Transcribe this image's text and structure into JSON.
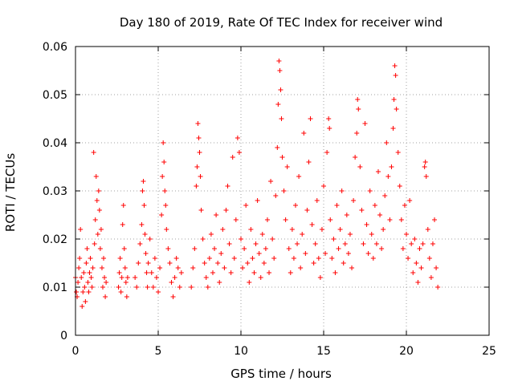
{
  "chart_data": {
    "type": "scatter",
    "title": "Day 180 of 2019, Rate Of TEC Index for receiver wind",
    "xlabel": "GPS time / hours",
    "ylabel": "ROTI / TECUs",
    "xlim": [
      0,
      25
    ],
    "ylim": [
      0,
      0.06
    ],
    "x_ticks": [
      0,
      5,
      10,
      15,
      20,
      25
    ],
    "x_tick_labels": [
      "0",
      "5",
      "10",
      "15",
      "20",
      "25"
    ],
    "y_ticks": [
      0,
      0.01,
      0.02,
      0.03,
      0.04,
      0.05,
      0.06
    ],
    "y_tick_labels": [
      "0",
      "0.01",
      "0.02",
      "0.03",
      "0.04",
      "0.05",
      "0.06"
    ],
    "grid": true,
    "legend": "none",
    "marker": "plus",
    "color": "#ff0000",
    "series": [
      {
        "points": [
          [
            0.0,
            0.012
          ],
          [
            0.05,
            0.009
          ],
          [
            0.1,
            0.008
          ],
          [
            0.15,
            0.011
          ],
          [
            0.2,
            0.014
          ],
          [
            0.25,
            0.016
          ],
          [
            0.3,
            0.022
          ],
          [
            0.35,
            0.012
          ],
          [
            0.4,
            0.006
          ],
          [
            0.45,
            0.009
          ],
          [
            0.5,
            0.013
          ],
          [
            0.55,
            0.01
          ],
          [
            0.6,
            0.007
          ],
          [
            0.65,
            0.015
          ],
          [
            0.7,
            0.018
          ],
          [
            0.75,
            0.011
          ],
          [
            0.8,
            0.009
          ],
          [
            0.85,
            0.013
          ],
          [
            0.9,
            0.016
          ],
          [
            0.95,
            0.012
          ],
          [
            1.0,
            0.01
          ],
          [
            1.05,
            0.014
          ],
          [
            1.1,
            0.038
          ],
          [
            1.15,
            0.019
          ],
          [
            1.2,
            0.024
          ],
          [
            1.25,
            0.033
          ],
          [
            1.3,
            0.028
          ],
          [
            1.35,
            0.021
          ],
          [
            1.4,
            0.03
          ],
          [
            1.45,
            0.026
          ],
          [
            1.5,
            0.018
          ],
          [
            1.55,
            0.022
          ],
          [
            1.6,
            0.014
          ],
          [
            1.65,
            0.01
          ],
          [
            1.7,
            0.016
          ],
          [
            1.75,
            0.012
          ],
          [
            1.8,
            0.008
          ],
          [
            1.85,
            0.011
          ],
          [
            2.6,
            0.01
          ],
          [
            2.65,
            0.013
          ],
          [
            2.7,
            0.016
          ],
          [
            2.75,
            0.009
          ],
          [
            2.8,
            0.012
          ],
          [
            2.85,
            0.023
          ],
          [
            2.9,
            0.027
          ],
          [
            2.95,
            0.018
          ],
          [
            3.0,
            0.014
          ],
          [
            3.05,
            0.011
          ],
          [
            3.1,
            0.008
          ],
          [
            3.15,
            0.012
          ],
          [
            3.6,
            0.012
          ],
          [
            3.7,
            0.01
          ],
          [
            3.8,
            0.015
          ],
          [
            3.9,
            0.019
          ],
          [
            4.0,
            0.023
          ],
          [
            4.05,
            0.03
          ],
          [
            4.1,
            0.032
          ],
          [
            4.15,
            0.027
          ],
          [
            4.2,
            0.021
          ],
          [
            4.25,
            0.017
          ],
          [
            4.3,
            0.013
          ],
          [
            4.35,
            0.01
          ],
          [
            4.4,
            0.015
          ],
          [
            4.5,
            0.02
          ],
          [
            4.6,
            0.013
          ],
          [
            4.7,
            0.01
          ],
          [
            4.8,
            0.016
          ],
          [
            4.9,
            0.012
          ],
          [
            5.0,
            0.009
          ],
          [
            5.1,
            0.014
          ],
          [
            5.2,
            0.025
          ],
          [
            5.25,
            0.033
          ],
          [
            5.3,
            0.04
          ],
          [
            5.35,
            0.036
          ],
          [
            5.4,
            0.03
          ],
          [
            5.45,
            0.027
          ],
          [
            5.5,
            0.022
          ],
          [
            5.6,
            0.018
          ],
          [
            5.7,
            0.015
          ],
          [
            5.8,
            0.011
          ],
          [
            5.9,
            0.008
          ],
          [
            6.0,
            0.012
          ],
          [
            6.1,
            0.016
          ],
          [
            6.2,
            0.014
          ],
          [
            6.3,
            0.01
          ],
          [
            6.4,
            0.013
          ],
          [
            7.0,
            0.01
          ],
          [
            7.1,
            0.014
          ],
          [
            7.2,
            0.018
          ],
          [
            7.3,
            0.031
          ],
          [
            7.35,
            0.035
          ],
          [
            7.4,
            0.044
          ],
          [
            7.45,
            0.041
          ],
          [
            7.5,
            0.038
          ],
          [
            7.55,
            0.033
          ],
          [
            7.6,
            0.026
          ],
          [
            7.7,
            0.02
          ],
          [
            7.8,
            0.015
          ],
          [
            7.9,
            0.012
          ],
          [
            8.0,
            0.01
          ],
          [
            8.1,
            0.016
          ],
          [
            8.2,
            0.021
          ],
          [
            8.3,
            0.013
          ],
          [
            8.4,
            0.018
          ],
          [
            8.5,
            0.025
          ],
          [
            8.6,
            0.015
          ],
          [
            8.7,
            0.011
          ],
          [
            8.8,
            0.017
          ],
          [
            8.9,
            0.022
          ],
          [
            9.0,
            0.014
          ],
          [
            9.1,
            0.026
          ],
          [
            9.2,
            0.031
          ],
          [
            9.3,
            0.019
          ],
          [
            9.4,
            0.013
          ],
          [
            9.5,
            0.037
          ],
          [
            9.6,
            0.016
          ],
          [
            9.7,
            0.024
          ],
          [
            9.8,
            0.041
          ],
          [
            9.9,
            0.038
          ],
          [
            10.0,
            0.02
          ],
          [
            10.1,
            0.014
          ],
          [
            10.2,
            0.018
          ],
          [
            10.3,
            0.027
          ],
          [
            10.4,
            0.015
          ],
          [
            10.5,
            0.011
          ],
          [
            10.6,
            0.022
          ],
          [
            10.7,
            0.016
          ],
          [
            10.8,
            0.013
          ],
          [
            10.9,
            0.019
          ],
          [
            11.0,
            0.028
          ],
          [
            11.1,
            0.017
          ],
          [
            11.2,
            0.012
          ],
          [
            11.3,
            0.021
          ],
          [
            11.4,
            0.015
          ],
          [
            11.5,
            0.018
          ],
          [
            11.6,
            0.024
          ],
          [
            11.7,
            0.013
          ],
          [
            11.8,
            0.032
          ],
          [
            11.9,
            0.02
          ],
          [
            12.0,
            0.016
          ],
          [
            12.1,
            0.029
          ],
          [
            12.2,
            0.039
          ],
          [
            12.25,
            0.048
          ],
          [
            12.3,
            0.057
          ],
          [
            12.35,
            0.055
          ],
          [
            12.4,
            0.051
          ],
          [
            12.45,
            0.045
          ],
          [
            12.5,
            0.037
          ],
          [
            12.6,
            0.03
          ],
          [
            12.7,
            0.024
          ],
          [
            12.8,
            0.035
          ],
          [
            12.9,
            0.018
          ],
          [
            13.0,
            0.013
          ],
          [
            13.1,
            0.022
          ],
          [
            13.2,
            0.016
          ],
          [
            13.3,
            0.027
          ],
          [
            13.4,
            0.019
          ],
          [
            13.5,
            0.033
          ],
          [
            13.6,
            0.014
          ],
          [
            13.7,
            0.021
          ],
          [
            13.8,
            0.042
          ],
          [
            13.9,
            0.017
          ],
          [
            14.0,
            0.026
          ],
          [
            14.1,
            0.036
          ],
          [
            14.2,
            0.045
          ],
          [
            14.3,
            0.023
          ],
          [
            14.4,
            0.015
          ],
          [
            14.5,
            0.019
          ],
          [
            14.6,
            0.028
          ],
          [
            14.7,
            0.016
          ],
          [
            14.8,
            0.012
          ],
          [
            14.9,
            0.022
          ],
          [
            15.0,
            0.031
          ],
          [
            15.1,
            0.017
          ],
          [
            15.2,
            0.038
          ],
          [
            15.3,
            0.045
          ],
          [
            15.35,
            0.043
          ],
          [
            15.4,
            0.024
          ],
          [
            15.5,
            0.016
          ],
          [
            15.6,
            0.02
          ],
          [
            15.7,
            0.013
          ],
          [
            15.8,
            0.027
          ],
          [
            15.9,
            0.018
          ],
          [
            16.0,
            0.022
          ],
          [
            16.1,
            0.03
          ],
          [
            16.2,
            0.015
          ],
          [
            16.3,
            0.019
          ],
          [
            16.4,
            0.025
          ],
          [
            16.5,
            0.017
          ],
          [
            16.6,
            0.021
          ],
          [
            16.7,
            0.014
          ],
          [
            16.8,
            0.028
          ],
          [
            16.9,
            0.037
          ],
          [
            17.0,
            0.042
          ],
          [
            17.05,
            0.049
          ],
          [
            17.1,
            0.047
          ],
          [
            17.2,
            0.035
          ],
          [
            17.3,
            0.026
          ],
          [
            17.4,
            0.019
          ],
          [
            17.5,
            0.044
          ],
          [
            17.6,
            0.023
          ],
          [
            17.7,
            0.017
          ],
          [
            17.8,
            0.03
          ],
          [
            17.9,
            0.021
          ],
          [
            18.0,
            0.016
          ],
          [
            18.1,
            0.027
          ],
          [
            18.2,
            0.019
          ],
          [
            18.3,
            0.034
          ],
          [
            18.4,
            0.025
          ],
          [
            18.5,
            0.018
          ],
          [
            18.6,
            0.022
          ],
          [
            18.7,
            0.029
          ],
          [
            18.8,
            0.04
          ],
          [
            18.9,
            0.033
          ],
          [
            19.0,
            0.024
          ],
          [
            19.1,
            0.035
          ],
          [
            19.2,
            0.043
          ],
          [
            19.25,
            0.049
          ],
          [
            19.3,
            0.056
          ],
          [
            19.35,
            0.054
          ],
          [
            19.4,
            0.047
          ],
          [
            19.5,
            0.038
          ],
          [
            19.6,
            0.031
          ],
          [
            19.7,
            0.024
          ],
          [
            19.8,
            0.018
          ],
          [
            19.9,
            0.027
          ],
          [
            20.0,
            0.021
          ],
          [
            20.1,
            0.016
          ],
          [
            20.2,
            0.028
          ],
          [
            20.3,
            0.019
          ],
          [
            20.4,
            0.013
          ],
          [
            20.5,
            0.02
          ],
          [
            20.6,
            0.015
          ],
          [
            20.7,
            0.011
          ],
          [
            20.8,
            0.018
          ],
          [
            20.9,
            0.014
          ],
          [
            21.0,
            0.019
          ],
          [
            21.1,
            0.035
          ],
          [
            21.15,
            0.036
          ],
          [
            21.2,
            0.033
          ],
          [
            21.3,
            0.022
          ],
          [
            21.4,
            0.016
          ],
          [
            21.5,
            0.012
          ],
          [
            21.6,
            0.019
          ],
          [
            21.7,
            0.024
          ],
          [
            21.8,
            0.014
          ],
          [
            21.9,
            0.01
          ]
        ]
      }
    ]
  }
}
